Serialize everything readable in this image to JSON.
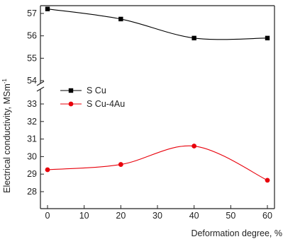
{
  "chart_data": {
    "type": "line",
    "title": "",
    "xlabel": "Deformation degree, %",
    "ylabel": "Electrical conductivity, MSm",
    "ylabel_superscript": "-1",
    "axis_break": true,
    "xlim": [
      0,
      60
    ],
    "x_ticks": [
      0,
      10,
      20,
      30,
      40,
      50,
      60
    ],
    "x_tick_labels": [
      "0",
      "10",
      "20",
      "30",
      "40",
      "50",
      "60"
    ],
    "y_upper_ticks": [
      54,
      55,
      56,
      57
    ],
    "y_upper_tick_labels": [
      "54",
      "55",
      "56",
      "57"
    ],
    "y_lower_ticks": [
      28,
      29,
      30,
      31,
      32,
      33
    ],
    "y_lower_tick_labels": [
      "28",
      "29",
      "30",
      "31",
      "32",
      "33"
    ],
    "grid": false,
    "legend_position": "middle-left",
    "series": [
      {
        "name": "S Cu",
        "color": "#000000",
        "marker": "square",
        "smooth_line": true,
        "x": [
          0,
          20,
          40,
          60
        ],
        "y": [
          57.2,
          56.75,
          55.9,
          55.9
        ]
      },
      {
        "name": "S Cu-4Au",
        "color": "#e8000b",
        "marker": "circle",
        "smooth_line": true,
        "x": [
          0,
          20,
          40,
          60
        ],
        "y": [
          29.25,
          29.55,
          30.6,
          28.65
        ]
      }
    ]
  }
}
